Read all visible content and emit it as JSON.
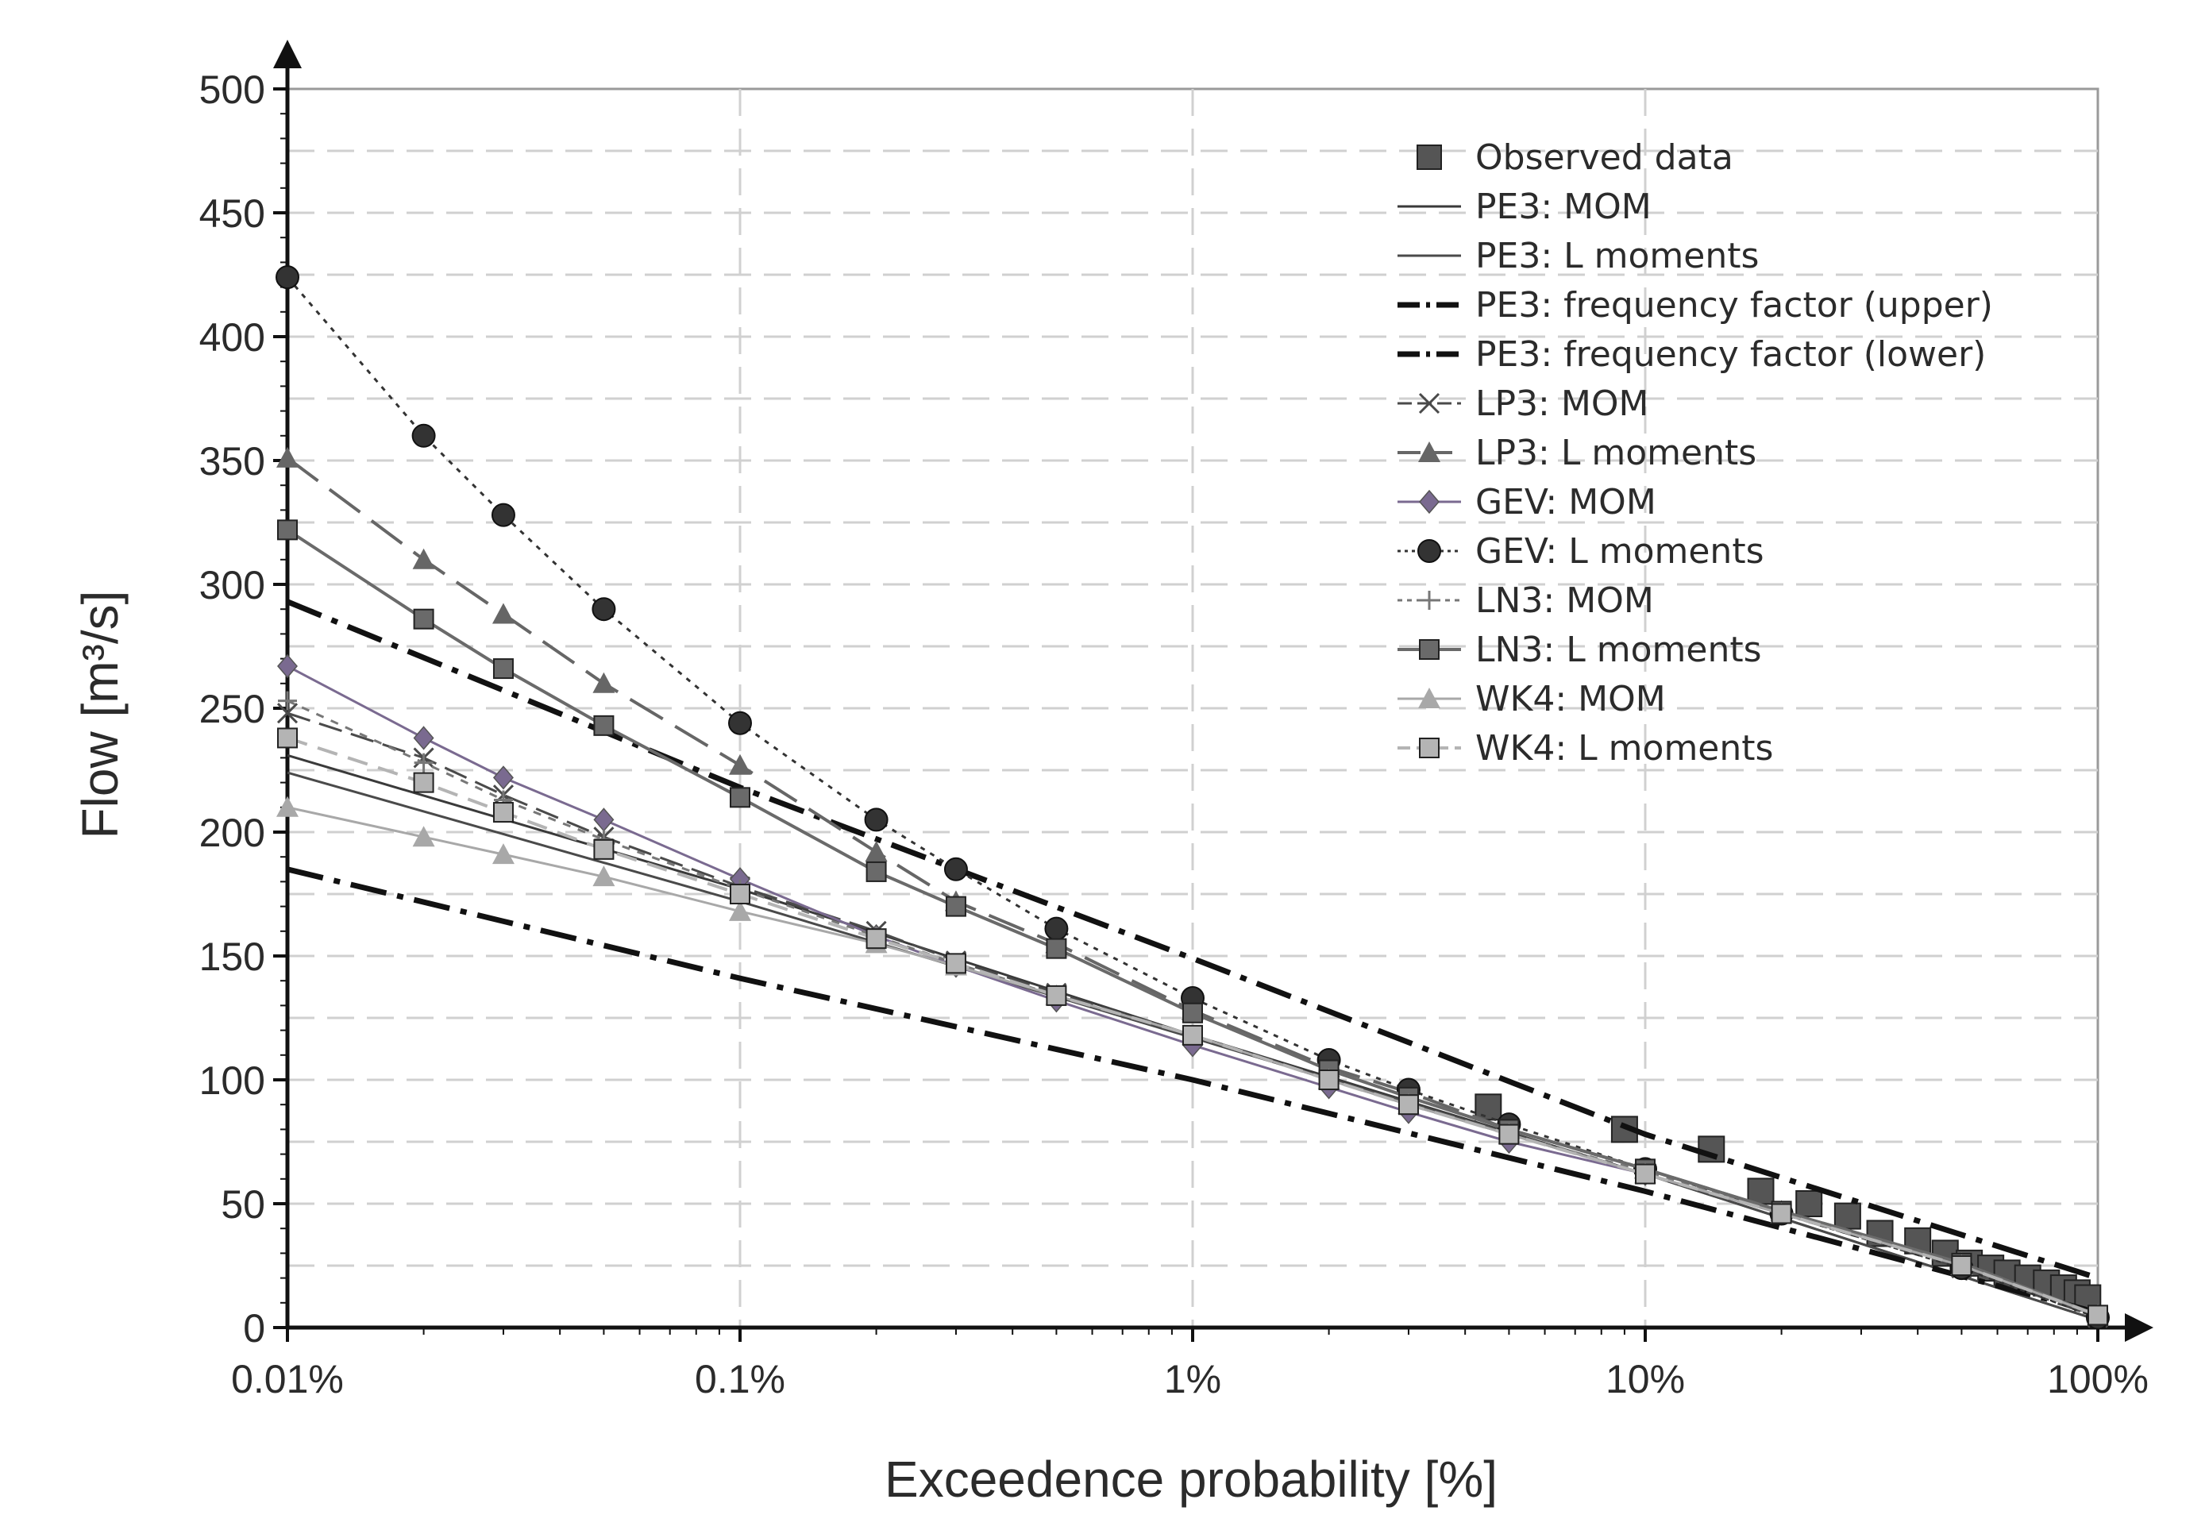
{
  "chart_data": {
    "type": "line",
    "title": "",
    "xlabel": "Exceedence probability [%]",
    "ylabel": "Flow [m³/s]",
    "xscale": "log",
    "xlim": [
      0.01,
      100
    ],
    "ylim": [
      0,
      500
    ],
    "grid": true,
    "legend_position": "top-right",
    "x_ticks": [
      {
        "value": 0.01,
        "label": "0.01%"
      },
      {
        "value": 0.1,
        "label": "0.1%"
      },
      {
        "value": 1,
        "label": "1%"
      },
      {
        "value": 10,
        "label": "10%"
      },
      {
        "value": 100,
        "label": "100%"
      }
    ],
    "y_ticks": [
      0,
      50,
      100,
      150,
      200,
      250,
      300,
      350,
      400,
      450,
      500
    ],
    "series": [
      {
        "name": "Observed data",
        "kind": "points",
        "color": "#555555",
        "marker": "square",
        "x": [
          4.5,
          9,
          14,
          18,
          23,
          28,
          33,
          40,
          46,
          52,
          58,
          63,
          70,
          77,
          84,
          90,
          95
        ],
        "y": [
          89,
          80,
          72,
          55,
          50,
          45,
          38,
          35,
          30,
          26,
          24,
          22,
          20,
          18,
          16,
          14,
          12
        ]
      },
      {
        "name": "PE3: MOM",
        "kind": "line",
        "color": "#3a3a3a",
        "marker": "none",
        "x": [
          0.01,
          0.1,
          1,
          10,
          100
        ],
        "y": [
          231,
          177,
          118,
          62,
          3
        ]
      },
      {
        "name": "PE3: L moments",
        "kind": "line",
        "color": "#4a4a4a",
        "marker": "none",
        "x": [
          0.01,
          0.1,
          1,
          10,
          100
        ],
        "y": [
          224,
          172,
          117,
          62,
          3
        ]
      },
      {
        "name": "PE3: frequency factor (upper)",
        "kind": "line",
        "color": "#111111",
        "marker": "none",
        "x": [
          0.01,
          0.1,
          1,
          10,
          100
        ],
        "y": [
          293,
          218,
          149,
          78,
          20
        ]
      },
      {
        "name": "PE3: frequency factor (lower)",
        "kind": "line",
        "color": "#111111",
        "marker": "none",
        "x": [
          0.01,
          0.1,
          1,
          10,
          100
        ],
        "y": [
          185,
          141,
          100,
          55,
          6
        ]
      },
      {
        "name": "LP3: MOM",
        "kind": "line",
        "color": "#4a4a4a",
        "marker": "x",
        "x": [
          0.01,
          0.02,
          0.03,
          0.05,
          0.1,
          0.2,
          0.3,
          0.5,
          1,
          2,
          3,
          5,
          10,
          20,
          50,
          100
        ],
        "y": [
          248,
          230,
          215,
          198,
          178,
          160,
          148,
          135,
          118,
          100,
          90,
          78,
          62,
          46,
          24,
          4
        ]
      },
      {
        "name": "LP3: L moments",
        "kind": "line",
        "color": "#666666",
        "marker": "triangle",
        "x": [
          0.01,
          0.02,
          0.03,
          0.05,
          0.1,
          0.2,
          0.3,
          0.5,
          1,
          2,
          3,
          5,
          10,
          20,
          50,
          100
        ],
        "y": [
          351,
          310,
          288,
          260,
          227,
          192,
          172,
          155,
          128,
          105,
          95,
          80,
          64,
          47,
          26,
          5
        ]
      },
      {
        "name": "GEV: MOM",
        "kind": "line",
        "color": "#7a6a90",
        "marker": "diamond",
        "x": [
          0.01,
          0.02,
          0.03,
          0.05,
          0.1,
          0.2,
          0.3,
          0.5,
          1,
          2,
          3,
          5,
          10,
          20,
          50,
          100
        ],
        "y": [
          267,
          238,
          222,
          205,
          181,
          158,
          146,
          132,
          114,
          97,
          87,
          75,
          62,
          46,
          25,
          5
        ]
      },
      {
        "name": "GEV: L moments",
        "kind": "line",
        "color": "#333333",
        "marker": "circle",
        "x": [
          0.01,
          0.02,
          0.03,
          0.05,
          0.1,
          0.2,
          0.3,
          0.5,
          1,
          2,
          3,
          5,
          10,
          20,
          50,
          100
        ],
        "y": [
          424,
          360,
          328,
          290,
          244,
          205,
          185,
          161,
          133,
          108,
          96,
          82,
          64,
          46,
          24,
          4
        ]
      },
      {
        "name": "LN3: MOM",
        "kind": "line",
        "color": "#777777",
        "marker": "plus",
        "x": [
          0.01,
          0.02,
          0.03,
          0.05,
          0.1,
          0.2,
          0.3,
          0.5,
          1,
          2,
          3,
          5,
          10,
          20,
          50,
          100
        ],
        "y": [
          253,
          228,
          213,
          197,
          177,
          158,
          147,
          134,
          118,
          100,
          90,
          78,
          63,
          47,
          25,
          5
        ]
      },
      {
        "name": "LN3: L moments",
        "kind": "line",
        "color": "#6a6a6a",
        "marker": "square",
        "x": [
          0.01,
          0.02,
          0.03,
          0.05,
          0.1,
          0.2,
          0.3,
          0.5,
          1,
          2,
          3,
          5,
          10,
          20,
          50,
          100
        ],
        "y": [
          322,
          286,
          266,
          243,
          214,
          184,
          170,
          153,
          127,
          104,
          93,
          80,
          64,
          47,
          26,
          5
        ]
      },
      {
        "name": "WK4: MOM",
        "kind": "line",
        "color": "#a8a8a8",
        "marker": "triangle",
        "x": [
          0.01,
          0.02,
          0.03,
          0.05,
          0.1,
          0.2,
          0.3,
          0.5,
          1,
          2,
          3,
          5,
          10,
          20,
          50,
          100
        ],
        "y": [
          210,
          198,
          191,
          182,
          168,
          155,
          146,
          134,
          118,
          100,
          90,
          78,
          62,
          46,
          25,
          5
        ]
      },
      {
        "name": "WK4: L moments",
        "kind": "line",
        "color": "#b4b4b4",
        "marker": "square",
        "x": [
          0.01,
          0.02,
          0.03,
          0.05,
          0.1,
          0.2,
          0.3,
          0.5,
          1,
          2,
          3,
          5,
          10,
          20,
          50,
          100
        ],
        "y": [
          238,
          220,
          208,
          193,
          175,
          157,
          147,
          134,
          118,
          100,
          90,
          78,
          62,
          46,
          25,
          5
        ]
      }
    ]
  }
}
